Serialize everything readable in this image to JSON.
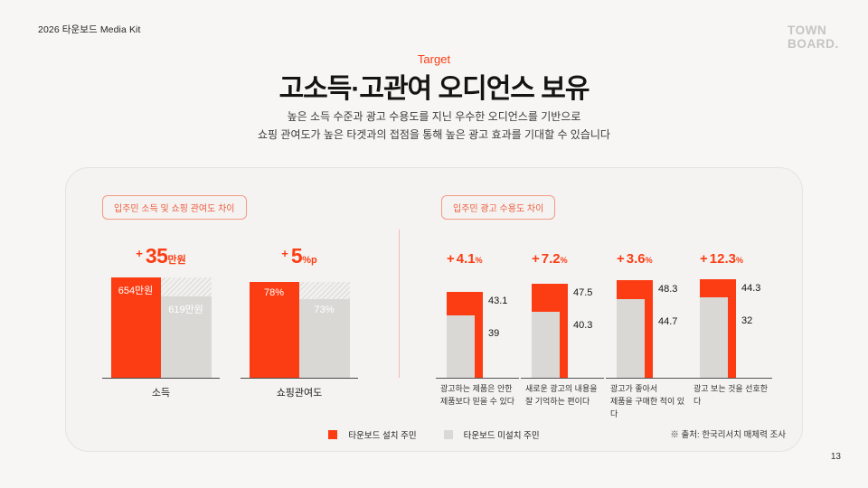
{
  "page": {
    "header": "2026 타운보드 Media Kit",
    "logo_line1": "TOWN",
    "logo_line2": "BOARD.",
    "page_number": "13"
  },
  "hero": {
    "eyebrow": "Target",
    "title": "고소득·고관여 오디언스 보유",
    "subtitle_line1": "높은 소득 수준과 광고 수용도를 지닌 우수한 오디언스를 기반으로",
    "subtitle_line2": "쇼핑 관여도가 높은 타겟과의 접점을 통해 높은 광고 효과를 기대할 수 있습니다"
  },
  "colors": {
    "accent": "#FC3D13",
    "bar_gray": "#D9D8D5",
    "badge_red": "#EE5B3C"
  },
  "card": {
    "left_badge": "입주민 소득 및 쇼핑 관여도 차이",
    "right_badge": "입주민 광고 수용도 차이"
  },
  "legend": {
    "installed": "타운보드 설치 주민",
    "not_installed": "타운보드 미설치 주민"
  },
  "source": "※ 출처: 한국리서치 매체력 조사",
  "chart_data": [
    {
      "type": "bar",
      "title": "입주민 소득 및 쇼핑 관여도 차이",
      "legend": [
        "타운보드 설치 주민",
        "타운보드 미설치 주민"
      ],
      "legend_position": "bottom",
      "grid": false,
      "groups": [
        {
          "category": "소득",
          "diff": {
            "plus": "+",
            "value": "35",
            "unit": "만원",
            "numeric": 35
          },
          "installed": {
            "value": 654,
            "label": "654만원"
          },
          "not_installed": {
            "value": 619,
            "label": "619만원"
          },
          "px": {
            "red": 111,
            "gray": 90,
            "hatch": 21
          }
        },
        {
          "category": "쇼핑관여도",
          "diff": {
            "plus": "+",
            "value": "5",
            "unit": "%p",
            "numeric": 5
          },
          "installed": {
            "value": 78,
            "label": "78%"
          },
          "not_installed": {
            "value": 73,
            "label": "73%"
          },
          "px": {
            "red": 106,
            "gray": 87,
            "hatch": 19
          }
        }
      ]
    },
    {
      "type": "bar",
      "title": "입주민 광고 수용도 차이",
      "unit": "%",
      "legend": [
        "타운보드 설치 주민",
        "타운보드 미설치 주민"
      ],
      "legend_position": "bottom",
      "grid": false,
      "groups": [
        {
          "caption_line1": "광고하는 제품은 안한",
          "caption_line2": "제품보다 믿을 수 있다",
          "diff": {
            "plus": "+",
            "value": "4.1",
            "unit": "%",
            "numeric": 4.1
          },
          "installed": {
            "value": 43.1,
            "label": "43.1"
          },
          "not_installed": {
            "value": 39,
            "label": "39"
          },
          "px": {
            "red": 95,
            "gray": 69
          }
        },
        {
          "caption_line1": "새로운 광고의 내용을",
          "caption_line2": "잘 기억하는 편이다",
          "diff": {
            "plus": "+",
            "value": "7.2",
            "unit": "%",
            "numeric": 7.2
          },
          "installed": {
            "value": 47.5,
            "label": "47.5"
          },
          "not_installed": {
            "value": 40.3,
            "label": "40.3"
          },
          "px": {
            "red": 104,
            "gray": 73
          }
        },
        {
          "caption_line1": "광고가 좋아서",
          "caption_line2": "제품을 구매한 적이 있다",
          "diff": {
            "plus": "+",
            "value": "3.6",
            "unit": "%",
            "numeric": 3.6
          },
          "installed": {
            "value": 48.3,
            "label": "48.3"
          },
          "not_installed": {
            "value": 44.7,
            "label": "44.7"
          },
          "px": {
            "red": 108,
            "gray": 87
          }
        },
        {
          "caption_line1": "광고 보는 것을 선호한다",
          "caption_line2": "",
          "diff": {
            "plus": "+",
            "value": "12.3",
            "unit": "%",
            "numeric": 12.3
          },
          "installed": {
            "value": 44.3,
            "label": "44.3"
          },
          "not_installed": {
            "value": 32,
            "label": "32"
          },
          "px": {
            "red": 109,
            "gray": 89
          }
        }
      ]
    }
  ]
}
